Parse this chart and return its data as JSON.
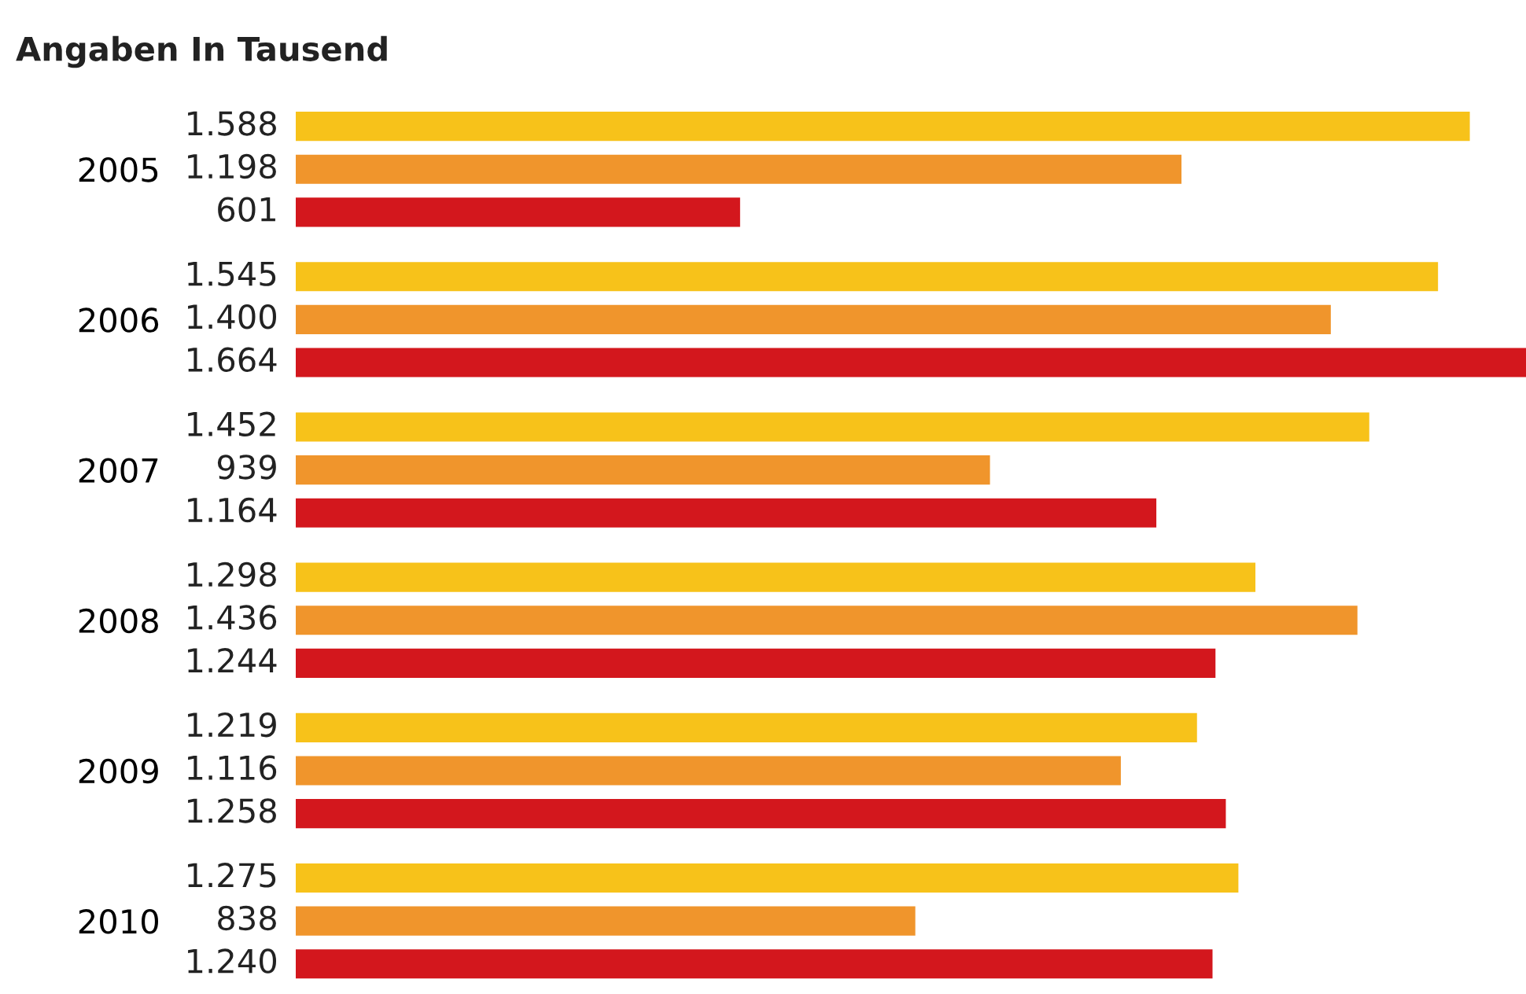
{
  "chart_data": {
    "type": "bar",
    "orientation": "horizontal",
    "title": "Angaben In Tausend",
    "categories": [
      "2005",
      "2006",
      "2007",
      "2008",
      "2009",
      "2010"
    ],
    "series": [
      {
        "color": "#f7c21a",
        "values": [
          1588,
          1545,
          1452,
          1298,
          1219,
          1275
        ],
        "value_labels": [
          "1.588",
          "1.545",
          "1.452",
          "1.298",
          "1.219",
          "1.275"
        ]
      },
      {
        "color": "#f0952c",
        "values": [
          1198,
          1400,
          939,
          1436,
          1116,
          838
        ],
        "value_labels": [
          "1.198",
          "1.400",
          "939",
          "1.436",
          "1.116",
          "838"
        ]
      },
      {
        "color": "#d3171d",
        "values": [
          601,
          1664,
          1164,
          1244,
          1258,
          1240
        ],
        "value_labels": [
          "601",
          "1.664",
          "1.164",
          "1.244",
          "1.258",
          "1.240"
        ]
      }
    ],
    "tick_labels": "y",
    "grid": false,
    "legend": false
  }
}
